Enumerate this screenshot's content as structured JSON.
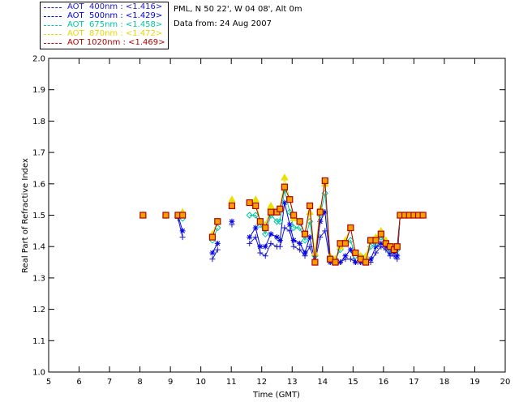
{
  "colors": {
    "series_400": "#1a1acc",
    "series_500": "#0000e6",
    "series_675": "#00c8a0",
    "series_870": "#e8e000",
    "series_1020": "#b00000",
    "marker_1020_fill": "#f5a000"
  },
  "legend": [
    {
      "label": "AOT  400nm : <1.416>",
      "color": "#1a1acc"
    },
    {
      "label": "AOT  500nm : <1.429>",
      "color": "#0000e6"
    },
    {
      "label": "AOT  675nm : <1.458>",
      "color": "#00c8a0"
    },
    {
      "label": "AOT  870nm : <1.472>",
      "color": "#e8d800"
    },
    {
      "label": "AOT 1020nm : <1.469>",
      "color": "#b00000"
    }
  ],
  "info": {
    "site": "PML, N 50 22', W 04 08', Alt 0m",
    "date": "Data from: 24 Aug 2007"
  },
  "chart_data": {
    "type": "line",
    "title": "",
    "xlabel": "Time (GMT)",
    "ylabel": "Real Part of Refractive Index",
    "xlim": [
      5,
      20
    ],
    "ylim": [
      1.0,
      2.0
    ],
    "xticks": [
      "5",
      "6",
      "7",
      "8",
      "9",
      "10",
      "11",
      "12",
      "13",
      "14",
      "15",
      "16",
      "17",
      "18",
      "19",
      "20"
    ],
    "yticks": [
      "1.0",
      "1.1",
      "1.2",
      "1.3",
      "1.4",
      "1.5",
      "1.6",
      "1.7",
      "1.8",
      "1.9",
      "2.0"
    ],
    "x": [
      8.1,
      8.85,
      9.25,
      9.4,
      10.38,
      10.55,
      11.02,
      11.6,
      11.8,
      11.95,
      12.12,
      12.3,
      12.5,
      12.6,
      12.75,
      12.92,
      13.05,
      13.25,
      13.42,
      13.58,
      13.75,
      13.92,
      14.08,
      14.25,
      14.42,
      14.58,
      14.75,
      14.92,
      15.08,
      15.25,
      15.42,
      15.58,
      15.75,
      15.92,
      16.08,
      16.22,
      16.35,
      16.45,
      16.55,
      16.7,
      16.85,
      17.0,
      17.15,
      17.3
    ],
    "series": [
      {
        "name": "AOT 400nm",
        "marker": "plus",
        "values": [
          1.5,
          1.5,
          1.49,
          1.43,
          1.36,
          1.39,
          1.47,
          1.41,
          1.43,
          1.38,
          1.37,
          1.41,
          1.4,
          1.4,
          1.46,
          1.45,
          1.4,
          1.39,
          1.37,
          1.4,
          1.35,
          1.43,
          1.45,
          1.35,
          1.35,
          1.35,
          1.36,
          1.36,
          1.35,
          1.35,
          1.35,
          1.35,
          1.38,
          1.4,
          1.39,
          1.37,
          1.37,
          1.36,
          1.5,
          1.5,
          1.5,
          1.5,
          1.5,
          1.5
        ]
      },
      {
        "name": "AOT 500nm",
        "marker": "asterisk",
        "values": [
          1.5,
          1.5,
          1.5,
          1.45,
          1.38,
          1.41,
          1.48,
          1.43,
          1.46,
          1.4,
          1.4,
          1.44,
          1.43,
          1.42,
          1.54,
          1.47,
          1.42,
          1.41,
          1.38,
          1.43,
          1.35,
          1.48,
          1.51,
          1.35,
          1.35,
          1.35,
          1.37,
          1.39,
          1.35,
          1.35,
          1.35,
          1.36,
          1.4,
          1.41,
          1.4,
          1.38,
          1.38,
          1.37,
          1.5,
          1.5,
          1.5,
          1.5,
          1.5,
          1.5
        ]
      },
      {
        "name": "AOT 675nm",
        "marker": "diamond",
        "values": [
          1.5,
          1.5,
          1.5,
          1.49,
          1.42,
          1.46,
          1.53,
          1.5,
          1.5,
          1.47,
          1.44,
          1.5,
          1.48,
          1.48,
          1.58,
          1.51,
          1.46,
          1.46,
          1.42,
          1.48,
          1.37,
          1.5,
          1.57,
          1.36,
          1.36,
          1.39,
          1.41,
          1.42,
          1.37,
          1.37,
          1.36,
          1.4,
          1.41,
          1.43,
          1.41,
          1.39,
          1.39,
          1.39,
          1.5,
          1.5,
          1.5,
          1.5,
          1.5,
          1.5
        ]
      },
      {
        "name": "AOT 870nm",
        "marker": "triangle",
        "values": [
          1.5,
          1.5,
          1.5,
          1.51,
          1.44,
          1.48,
          1.55,
          1.54,
          1.55,
          1.48,
          1.47,
          1.53,
          1.51,
          1.52,
          1.62,
          1.55,
          1.49,
          1.48,
          1.44,
          1.51,
          1.38,
          1.52,
          1.6,
          1.37,
          1.36,
          1.4,
          1.42,
          1.46,
          1.38,
          1.37,
          1.37,
          1.42,
          1.43,
          1.45,
          1.42,
          1.4,
          1.4,
          1.4,
          1.5,
          1.5,
          1.5,
          1.5,
          1.5,
          1.5
        ]
      },
      {
        "name": "AOT 1020nm",
        "marker": "square",
        "values": [
          1.5,
          1.5,
          1.5,
          1.5,
          1.43,
          1.48,
          1.53,
          1.54,
          1.53,
          1.48,
          1.46,
          1.51,
          1.51,
          1.52,
          1.59,
          1.55,
          1.5,
          1.48,
          1.44,
          1.53,
          1.35,
          1.51,
          1.61,
          1.36,
          1.35,
          1.41,
          1.41,
          1.46,
          1.38,
          1.36,
          1.35,
          1.42,
          1.42,
          1.44,
          1.41,
          1.4,
          1.39,
          1.4,
          1.5,
          1.5,
          1.5,
          1.5,
          1.5,
          1.5
        ]
      }
    ],
    "segments": [
      [
        0,
        0
      ],
      [
        1,
        1
      ],
      [
        2,
        3
      ],
      [
        4,
        5
      ],
      [
        6,
        6
      ],
      [
        7,
        43
      ]
    ]
  }
}
